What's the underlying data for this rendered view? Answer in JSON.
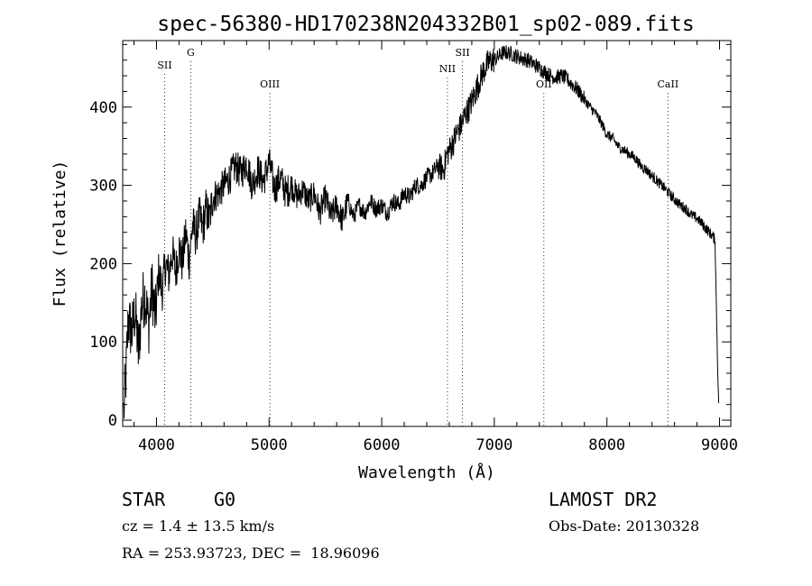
{
  "chart_data": {
    "type": "line",
    "title": "spec-56380-HD170238N204332B01_sp02-089.fits",
    "xlabel": "Wavelength (Å)",
    "ylabel": "Flux (relative)",
    "xlim": [
      3700,
      9100
    ],
    "ylim": [
      -8,
      485
    ],
    "xticks": [
      4000,
      5000,
      6000,
      7000,
      8000,
      9000
    ],
    "yticks": [
      0,
      100,
      200,
      300,
      400
    ],
    "grid": false,
    "spectral_lines": [
      {
        "label": "SII",
        "wavelength": 4072
      },
      {
        "label": "G",
        "wavelength": 4304
      },
      {
        "label": "OIII",
        "wavelength": 5007
      },
      {
        "label": "NII",
        "wavelength": 6584
      },
      {
        "label": "SII",
        "wavelength": 6717
      },
      {
        "label": "OII",
        "wavelength": 7440
      },
      {
        "label": "CaII",
        "wavelength": 8542
      }
    ],
    "series": [
      {
        "x": [
          3710,
          3730,
          3750,
          3780,
          3810,
          3840,
          3870,
          3900,
          3930,
          3960,
          3990,
          4020,
          4050,
          4080,
          4110,
          4140,
          4170,
          4200,
          4230,
          4260,
          4290,
          4320,
          4350,
          4380,
          4410,
          4440,
          4470,
          4500,
          4550,
          4600,
          4650,
          4700,
          4750,
          4800,
          4850,
          4900,
          4950,
          5000,
          5050,
          5100,
          5150,
          5200,
          5250,
          5300,
          5350,
          5400,
          5450,
          5500,
          5550,
          5600,
          5650,
          5700,
          5750,
          5800,
          5850,
          5900,
          5950,
          6000,
          6050,
          6100,
          6150,
          6200,
          6250,
          6300,
          6350,
          6400,
          6450,
          6500,
          6550,
          6580,
          6620,
          6660,
          6700,
          6740,
          6780,
          6820,
          6860,
          6900,
          6940,
          6980,
          7020,
          7060,
          7100,
          7150,
          7200,
          7250,
          7300,
          7350,
          7400,
          7450,
          7500,
          7550,
          7600,
          7650,
          7700,
          7750,
          7800,
          7850,
          7900,
          7950,
          8000,
          8050,
          8100,
          8150,
          8200,
          8250,
          8300,
          8350,
          8400,
          8450,
          8500,
          8550,
          8600,
          8650,
          8700,
          8750,
          8800,
          8850,
          8880,
          8910,
          8940,
          8960,
          8980,
          8995
        ],
        "y": [
          10,
          60,
          130,
          110,
          140,
          85,
          150,
          160,
          120,
          170,
          130,
          190,
          165,
          200,
          185,
          215,
          190,
          220,
          200,
          240,
          205,
          250,
          235,
          260,
          245,
          270,
          255,
          285,
          290,
          300,
          310,
          325,
          315,
          330,
          300,
          320,
          305,
          330,
          295,
          310,
          290,
          300,
          285,
          295,
          280,
          290,
          265,
          285,
          260,
          275,
          255,
          280,
          260,
          275,
          265,
          280,
          270,
          275,
          265,
          280,
          275,
          290,
          285,
          300,
          300,
          310,
          315,
          325,
          320,
          340,
          350,
          365,
          375,
          390,
          400,
          415,
          430,
          445,
          455,
          460,
          462,
          468,
          470,
          468,
          465,
          462,
          460,
          455,
          450,
          445,
          440,
          438,
          440,
          435,
          428,
          420,
          410,
          400,
          392,
          380,
          365,
          360,
          350,
          345,
          340,
          335,
          325,
          320,
          312,
          305,
          298,
          290,
          282,
          275,
          270,
          262,
          258,
          250,
          245,
          240,
          235,
          230,
          90,
          5
        ]
      }
    ]
  },
  "info": {
    "object_type": "STAR",
    "subclass": "G0",
    "cz": "cz = 1.4 ± 13.5 km/s",
    "coords": "RA = 253.93723, DEC =  18.96096",
    "survey": "LAMOST DR2",
    "obs_date": "Obs-Date: 20130328"
  }
}
